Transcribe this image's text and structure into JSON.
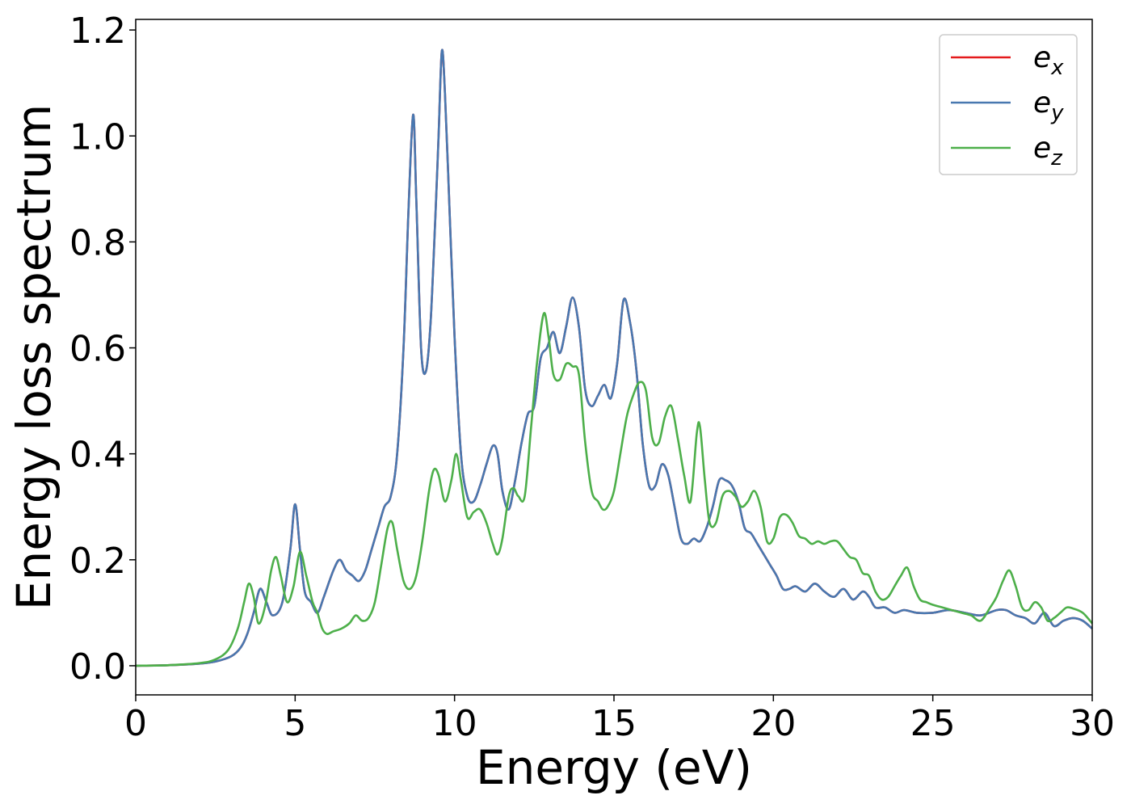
{
  "chart_data": {
    "type": "line",
    "title": "",
    "xlabel": "Energy (eV)",
    "ylabel": "Energy loss spectrum",
    "xlim": [
      0,
      30
    ],
    "ylim": [
      -0.055,
      1.22
    ],
    "xticks": [
      0,
      5,
      10,
      15,
      20,
      25,
      30
    ],
    "xtick_labels": [
      "0",
      "5",
      "10",
      "15",
      "20",
      "25",
      "30"
    ],
    "yticks": [
      0.0,
      0.2,
      0.4,
      0.6,
      0.8,
      1.0,
      1.2
    ],
    "ytick_labels": [
      "0.0",
      "0.2",
      "0.4",
      "0.6",
      "0.8",
      "1.0",
      "1.2"
    ],
    "grid": false,
    "legend_position": "top-right",
    "series": [
      {
        "name": "e",
        "subscript": "x",
        "color": "#e41a1c",
        "x": [
          0,
          1,
          2,
          2.5,
          3,
          3.3,
          3.5,
          3.7,
          3.9,
          4.1,
          4.3,
          4.6,
          4.85,
          5.0,
          5.15,
          5.3,
          5.5,
          5.7,
          5.9,
          6.2,
          6.4,
          6.6,
          6.8,
          7.0,
          7.2,
          7.4,
          7.6,
          7.8,
          8.0,
          8.2,
          8.4,
          8.55,
          8.7,
          8.8,
          8.95,
          9.1,
          9.25,
          9.4,
          9.5,
          9.6,
          9.7,
          9.85,
          10.0,
          10.2,
          10.4,
          10.6,
          10.8,
          11.0,
          11.2,
          11.35,
          11.5,
          11.7,
          11.9,
          12.1,
          12.3,
          12.5,
          12.7,
          12.9,
          13.1,
          13.3,
          13.5,
          13.7,
          13.9,
          14.1,
          14.3,
          14.5,
          14.7,
          14.9,
          15.1,
          15.3,
          15.5,
          15.7,
          15.9,
          16.1,
          16.3,
          16.5,
          16.7,
          16.9,
          17.1,
          17.3,
          17.5,
          17.7,
          17.9,
          18.1,
          18.3,
          18.5,
          18.7,
          18.9,
          19.1,
          19.3,
          19.5,
          19.7,
          19.9,
          20.1,
          20.3,
          20.5,
          20.7,
          21.0,
          21.3,
          21.6,
          21.9,
          22.2,
          22.5,
          22.8,
          23.0,
          23.2,
          23.5,
          23.8,
          24.1,
          24.5,
          25.0,
          25.5,
          26.0,
          26.5,
          27.0,
          27.3,
          27.6,
          27.9,
          28.2,
          28.5,
          28.8,
          29.1,
          29.4,
          29.7,
          30
        ],
        "y": [
          0,
          0.001,
          0.004,
          0.008,
          0.018,
          0.035,
          0.06,
          0.1,
          0.145,
          0.12,
          0.095,
          0.12,
          0.22,
          0.305,
          0.22,
          0.14,
          0.12,
          0.1,
          0.13,
          0.18,
          0.2,
          0.18,
          0.17,
          0.16,
          0.18,
          0.22,
          0.26,
          0.3,
          0.32,
          0.4,
          0.6,
          0.85,
          1.04,
          0.88,
          0.6,
          0.555,
          0.65,
          0.85,
          1.0,
          1.16,
          1.08,
          0.85,
          0.62,
          0.4,
          0.32,
          0.31,
          0.34,
          0.38,
          0.415,
          0.4,
          0.33,
          0.295,
          0.35,
          0.42,
          0.475,
          0.49,
          0.58,
          0.6,
          0.63,
          0.59,
          0.64,
          0.695,
          0.64,
          0.52,
          0.49,
          0.51,
          0.53,
          0.505,
          0.57,
          0.69,
          0.65,
          0.56,
          0.42,
          0.34,
          0.34,
          0.38,
          0.36,
          0.3,
          0.24,
          0.23,
          0.24,
          0.235,
          0.26,
          0.3,
          0.35,
          0.35,
          0.34,
          0.31,
          0.26,
          0.25,
          0.23,
          0.21,
          0.19,
          0.17,
          0.145,
          0.145,
          0.15,
          0.14,
          0.155,
          0.14,
          0.13,
          0.145,
          0.125,
          0.14,
          0.13,
          0.11,
          0.11,
          0.1,
          0.105,
          0.1,
          0.1,
          0.105,
          0.1,
          0.095,
          0.105,
          0.105,
          0.095,
          0.09,
          0.08,
          0.1,
          0.075,
          0.085,
          0.09,
          0.085,
          0.07
        ],
        "label_text": "x"
      },
      {
        "name": "e",
        "subscript": "y",
        "color": "#4878b0",
        "x": [
          0,
          1,
          2,
          2.5,
          3,
          3.3,
          3.5,
          3.7,
          3.9,
          4.1,
          4.3,
          4.6,
          4.85,
          5.0,
          5.15,
          5.3,
          5.5,
          5.7,
          5.9,
          6.2,
          6.4,
          6.6,
          6.8,
          7.0,
          7.2,
          7.4,
          7.6,
          7.8,
          8.0,
          8.2,
          8.4,
          8.55,
          8.7,
          8.8,
          8.95,
          9.1,
          9.25,
          9.4,
          9.5,
          9.6,
          9.7,
          9.85,
          10.0,
          10.2,
          10.4,
          10.6,
          10.8,
          11.0,
          11.2,
          11.35,
          11.5,
          11.7,
          11.9,
          12.1,
          12.3,
          12.5,
          12.7,
          12.9,
          13.1,
          13.3,
          13.5,
          13.7,
          13.9,
          14.1,
          14.3,
          14.5,
          14.7,
          14.9,
          15.1,
          15.3,
          15.5,
          15.7,
          15.9,
          16.1,
          16.3,
          16.5,
          16.7,
          16.9,
          17.1,
          17.3,
          17.5,
          17.7,
          17.9,
          18.1,
          18.3,
          18.5,
          18.7,
          18.9,
          19.1,
          19.3,
          19.5,
          19.7,
          19.9,
          20.1,
          20.3,
          20.5,
          20.7,
          21.0,
          21.3,
          21.6,
          21.9,
          22.2,
          22.5,
          22.8,
          23.0,
          23.2,
          23.5,
          23.8,
          24.1,
          24.5,
          25.0,
          25.5,
          26.0,
          26.5,
          27.0,
          27.3,
          27.6,
          27.9,
          28.2,
          28.5,
          28.8,
          29.1,
          29.4,
          29.7,
          30
        ],
        "y": [
          0,
          0.001,
          0.004,
          0.008,
          0.018,
          0.035,
          0.06,
          0.1,
          0.145,
          0.12,
          0.095,
          0.12,
          0.22,
          0.305,
          0.22,
          0.14,
          0.12,
          0.1,
          0.13,
          0.18,
          0.2,
          0.18,
          0.17,
          0.16,
          0.18,
          0.22,
          0.26,
          0.3,
          0.32,
          0.4,
          0.6,
          0.85,
          1.04,
          0.88,
          0.6,
          0.555,
          0.65,
          0.85,
          1.0,
          1.16,
          1.08,
          0.85,
          0.62,
          0.4,
          0.32,
          0.31,
          0.34,
          0.38,
          0.415,
          0.4,
          0.33,
          0.295,
          0.35,
          0.42,
          0.475,
          0.49,
          0.58,
          0.6,
          0.63,
          0.59,
          0.64,
          0.695,
          0.64,
          0.52,
          0.49,
          0.51,
          0.53,
          0.505,
          0.57,
          0.69,
          0.65,
          0.56,
          0.42,
          0.34,
          0.34,
          0.38,
          0.36,
          0.3,
          0.24,
          0.23,
          0.24,
          0.235,
          0.26,
          0.3,
          0.35,
          0.35,
          0.34,
          0.31,
          0.26,
          0.25,
          0.23,
          0.21,
          0.19,
          0.17,
          0.145,
          0.145,
          0.15,
          0.14,
          0.155,
          0.14,
          0.13,
          0.145,
          0.125,
          0.14,
          0.13,
          0.11,
          0.11,
          0.1,
          0.105,
          0.1,
          0.1,
          0.105,
          0.1,
          0.095,
          0.105,
          0.105,
          0.095,
          0.09,
          0.08,
          0.1,
          0.075,
          0.085,
          0.09,
          0.085,
          0.07
        ],
        "label_text": "y"
      },
      {
        "name": "e",
        "subscript": "z",
        "color": "#4daf4a",
        "x": [
          0,
          1,
          2,
          2.5,
          2.9,
          3.2,
          3.4,
          3.55,
          3.7,
          3.85,
          4.05,
          4.25,
          4.4,
          4.55,
          4.75,
          4.95,
          5.15,
          5.35,
          5.55,
          5.7,
          5.85,
          6.0,
          6.2,
          6.45,
          6.7,
          6.9,
          7.1,
          7.3,
          7.5,
          7.7,
          7.9,
          8.05,
          8.2,
          8.4,
          8.6,
          8.8,
          9.0,
          9.2,
          9.35,
          9.5,
          9.7,
          9.9,
          10.05,
          10.2,
          10.4,
          10.6,
          10.8,
          11.0,
          11.2,
          11.35,
          11.5,
          11.7,
          11.85,
          12.0,
          12.2,
          12.4,
          12.6,
          12.8,
          12.95,
          13.1,
          13.3,
          13.5,
          13.7,
          13.9,
          14.1,
          14.3,
          14.5,
          14.65,
          14.8,
          15.0,
          15.2,
          15.4,
          15.6,
          15.8,
          16.0,
          16.2,
          16.4,
          16.6,
          16.8,
          17.0,
          17.2,
          17.4,
          17.6,
          17.7,
          17.85,
          18.0,
          18.2,
          18.4,
          18.6,
          18.8,
          19.0,
          19.2,
          19.4,
          19.6,
          19.8,
          20.0,
          20.2,
          20.4,
          20.6,
          20.8,
          21.0,
          21.2,
          21.4,
          21.6,
          21.8,
          22.0,
          22.2,
          22.4,
          22.6,
          22.8,
          23.0,
          23.2,
          23.4,
          23.6,
          23.8,
          24.0,
          24.2,
          24.4,
          24.6,
          24.8,
          25.0,
          25.3,
          25.6,
          25.9,
          26.2,
          26.5,
          26.8,
          27.0,
          27.2,
          27.4,
          27.6,
          27.8,
          28.0,
          28.2,
          28.4,
          28.6,
          28.8,
          29.0,
          29.2,
          29.4,
          29.7,
          30
        ],
        "y": [
          0,
          0.001,
          0.005,
          0.012,
          0.03,
          0.07,
          0.12,
          0.155,
          0.13,
          0.08,
          0.11,
          0.18,
          0.205,
          0.17,
          0.12,
          0.15,
          0.215,
          0.17,
          0.12,
          0.1,
          0.07,
          0.06,
          0.065,
          0.07,
          0.08,
          0.095,
          0.085,
          0.09,
          0.12,
          0.19,
          0.26,
          0.27,
          0.22,
          0.16,
          0.145,
          0.17,
          0.24,
          0.33,
          0.37,
          0.36,
          0.31,
          0.35,
          0.4,
          0.35,
          0.28,
          0.29,
          0.295,
          0.27,
          0.23,
          0.21,
          0.24,
          0.32,
          0.335,
          0.32,
          0.32,
          0.45,
          0.58,
          0.665,
          0.62,
          0.55,
          0.54,
          0.57,
          0.565,
          0.55,
          0.42,
          0.33,
          0.31,
          0.295,
          0.3,
          0.33,
          0.4,
          0.47,
          0.51,
          0.535,
          0.52,
          0.43,
          0.42,
          0.47,
          0.49,
          0.43,
          0.36,
          0.31,
          0.44,
          0.45,
          0.35,
          0.27,
          0.27,
          0.32,
          0.33,
          0.32,
          0.3,
          0.31,
          0.33,
          0.3,
          0.235,
          0.24,
          0.28,
          0.285,
          0.27,
          0.245,
          0.24,
          0.23,
          0.235,
          0.23,
          0.235,
          0.235,
          0.22,
          0.205,
          0.2,
          0.175,
          0.17,
          0.14,
          0.125,
          0.13,
          0.15,
          0.17,
          0.185,
          0.15,
          0.125,
          0.12,
          0.115,
          0.11,
          0.105,
          0.1,
          0.095,
          0.085,
          0.11,
          0.13,
          0.16,
          0.18,
          0.15,
          0.11,
          0.105,
          0.12,
          0.11,
          0.085,
          0.09,
          0.1,
          0.11,
          0.108,
          0.1,
          0.08
        ],
        "label_text": "z"
      }
    ]
  }
}
